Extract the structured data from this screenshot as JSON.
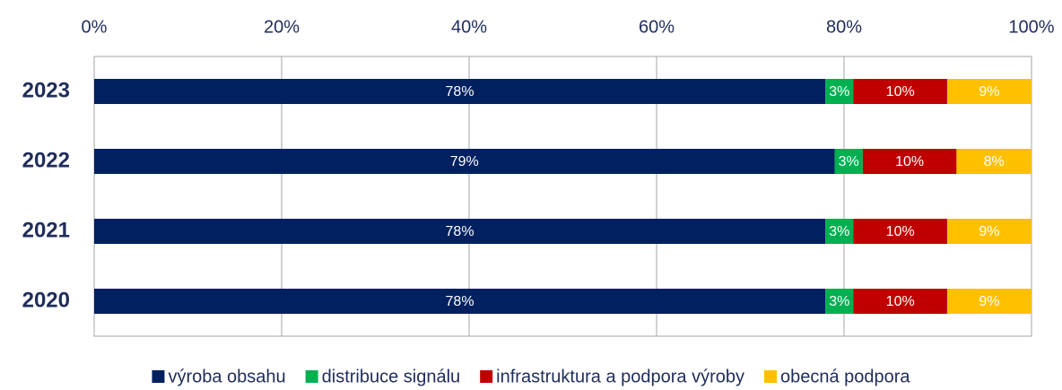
{
  "chart_data": {
    "type": "stacked-bar-horizontal",
    "categories": [
      "2023",
      "2022",
      "2021",
      "2020"
    ],
    "series": [
      {
        "name": "výroba obsahu",
        "color": "#002060",
        "values": [
          78,
          79,
          78,
          78
        ],
        "value_labels": [
          "78%",
          "79%",
          "78%",
          "78%"
        ]
      },
      {
        "name": "distribuce signálu",
        "color": "#00b050",
        "values": [
          3,
          3,
          3,
          3
        ],
        "value_labels": [
          "3%",
          "3%",
          "3%",
          "3%"
        ]
      },
      {
        "name": "infrastruktura a podpora výroby",
        "color": "#c00000",
        "values": [
          10,
          10,
          10,
          10
        ],
        "value_labels": [
          "10%",
          "10%",
          "10%",
          "10%"
        ]
      },
      {
        "name": "obecná podpora",
        "color": "#ffc000",
        "values": [
          9,
          8,
          9,
          9
        ],
        "value_labels": [
          "9%",
          "8%",
          "9%",
          "9%"
        ]
      }
    ],
    "xlim": [
      0,
      100
    ],
    "xticks": [
      {
        "value": 0,
        "label": "0%"
      },
      {
        "value": 20,
        "label": "20%"
      },
      {
        "value": 40,
        "label": "40%"
      },
      {
        "value": 60,
        "label": "60%"
      },
      {
        "value": 80,
        "label": "80%"
      },
      {
        "value": 100,
        "label": "100%"
      }
    ],
    "grid": true,
    "legend": "bottom"
  }
}
